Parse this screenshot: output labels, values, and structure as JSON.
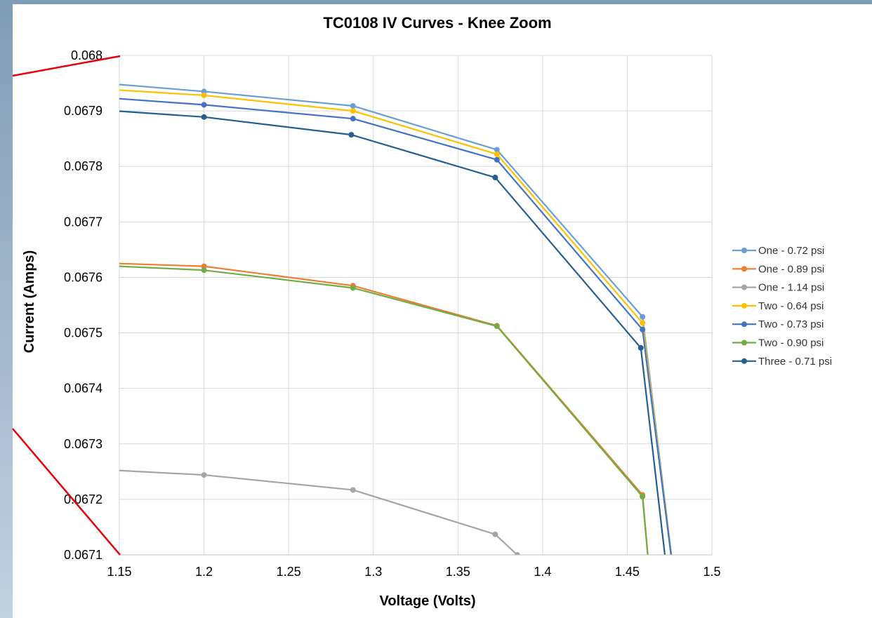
{
  "chart_data": {
    "type": "line",
    "title": "TC0108 IV Curves - Knee Zoom",
    "xlabel": "Voltage (Volts)",
    "ylabel": "Current (Amps)",
    "xlim": [
      1.15,
      1.5
    ],
    "ylim": [
      0.0671,
      0.068
    ],
    "x_ticks": [
      "1.15",
      "1.2",
      "1.25",
      "1.3",
      "1.35",
      "1.4",
      "1.45",
      "1.5"
    ],
    "y_ticks": [
      "0.0671",
      "0.0672",
      "0.0673",
      "0.0674",
      "0.0675",
      "0.0676",
      "0.0677",
      "0.0678",
      "0.0679",
      "0.068"
    ],
    "grid": true,
    "legend_position": "right",
    "series": [
      {
        "name": "One - 0.72 psi",
        "color": "#6a9fd3",
        "x": [
          1.1,
          1.2,
          1.288,
          1.373,
          1.459,
          1.48
        ],
        "y": [
          0.06796,
          0.067935,
          0.067909,
          0.06783,
          0.067529,
          0.067
        ]
      },
      {
        "name": "One - 0.89 psi",
        "color": "#ed7d31",
        "x": [
          1.1,
          1.2,
          1.288,
          1.373,
          1.459,
          1.465
        ],
        "y": [
          0.06763,
          0.06762,
          0.067585,
          0.067513,
          0.067208,
          0.067
        ]
      },
      {
        "name": "One - 1.14 psi",
        "color": "#a5a5a5",
        "x": [
          1.1,
          1.2,
          1.288,
          1.372,
          1.385
        ],
        "y": [
          0.06726,
          0.067244,
          0.067217,
          0.067137,
          0.0671
        ]
      },
      {
        "name": "Two - 0.64 psi",
        "color": "#ffc000",
        "x": [
          1.1,
          1.2,
          1.288,
          1.373,
          1.459,
          1.48
        ],
        "y": [
          0.067947,
          0.067928,
          0.0679,
          0.067822,
          0.067518,
          0.067
        ]
      },
      {
        "name": "Two - 0.73 psi",
        "color": "#4472c4",
        "x": [
          1.1,
          1.2,
          1.288,
          1.373,
          1.459,
          1.48
        ],
        "y": [
          0.067933,
          0.067911,
          0.067886,
          0.067812,
          0.067506,
          0.067
        ]
      },
      {
        "name": "Two - 0.90 psi",
        "color": "#70ad47",
        "x": [
          1.1,
          1.2,
          1.288,
          1.373,
          1.459,
          1.465
        ],
        "y": [
          0.067627,
          0.067613,
          0.067581,
          0.067512,
          0.067205,
          0.067
        ]
      },
      {
        "name": "Three - 0.71 psi",
        "color": "#255e91",
        "x": [
          1.1,
          1.2,
          1.287,
          1.372,
          1.458,
          1.476
        ],
        "y": [
          0.06791,
          0.067889,
          0.067857,
          0.06778,
          0.067473,
          0.067
        ]
      }
    ]
  }
}
